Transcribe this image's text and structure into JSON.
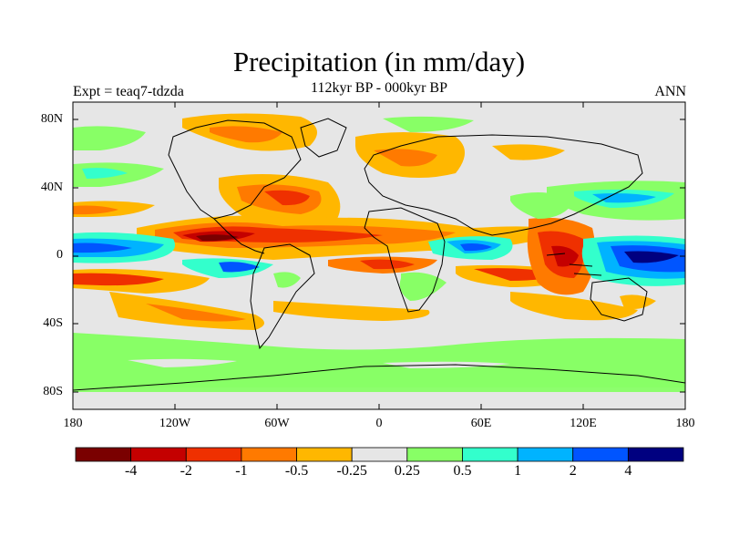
{
  "header": {
    "title": "Precipitation (in mm/day)",
    "subtitle": "112kyr BP - 000kyr BP",
    "left_label": "Expt = teaq7-tdzda",
    "right_label": "ANN"
  },
  "axes": {
    "y_ticks": [
      "80N",
      "40N",
      "0",
      "40S",
      "80S"
    ],
    "x_ticks": [
      "180",
      "120W",
      "60W",
      "0",
      "60E",
      "120E",
      "180"
    ]
  },
  "colorbar": {
    "colors": [
      "#7a0000",
      "#c40000",
      "#ef3000",
      "#ff7a00",
      "#ffb700",
      "#e6e6e6",
      "#88ff66",
      "#33ffcc",
      "#00b3ff",
      "#0055ff",
      "#000080"
    ],
    "labels": [
      "-4",
      "-2",
      "-1",
      "-0.5",
      "-0.25",
      "0.25",
      "0.5",
      "1",
      "2",
      "4"
    ]
  },
  "map_background": "#e6e6e6"
}
